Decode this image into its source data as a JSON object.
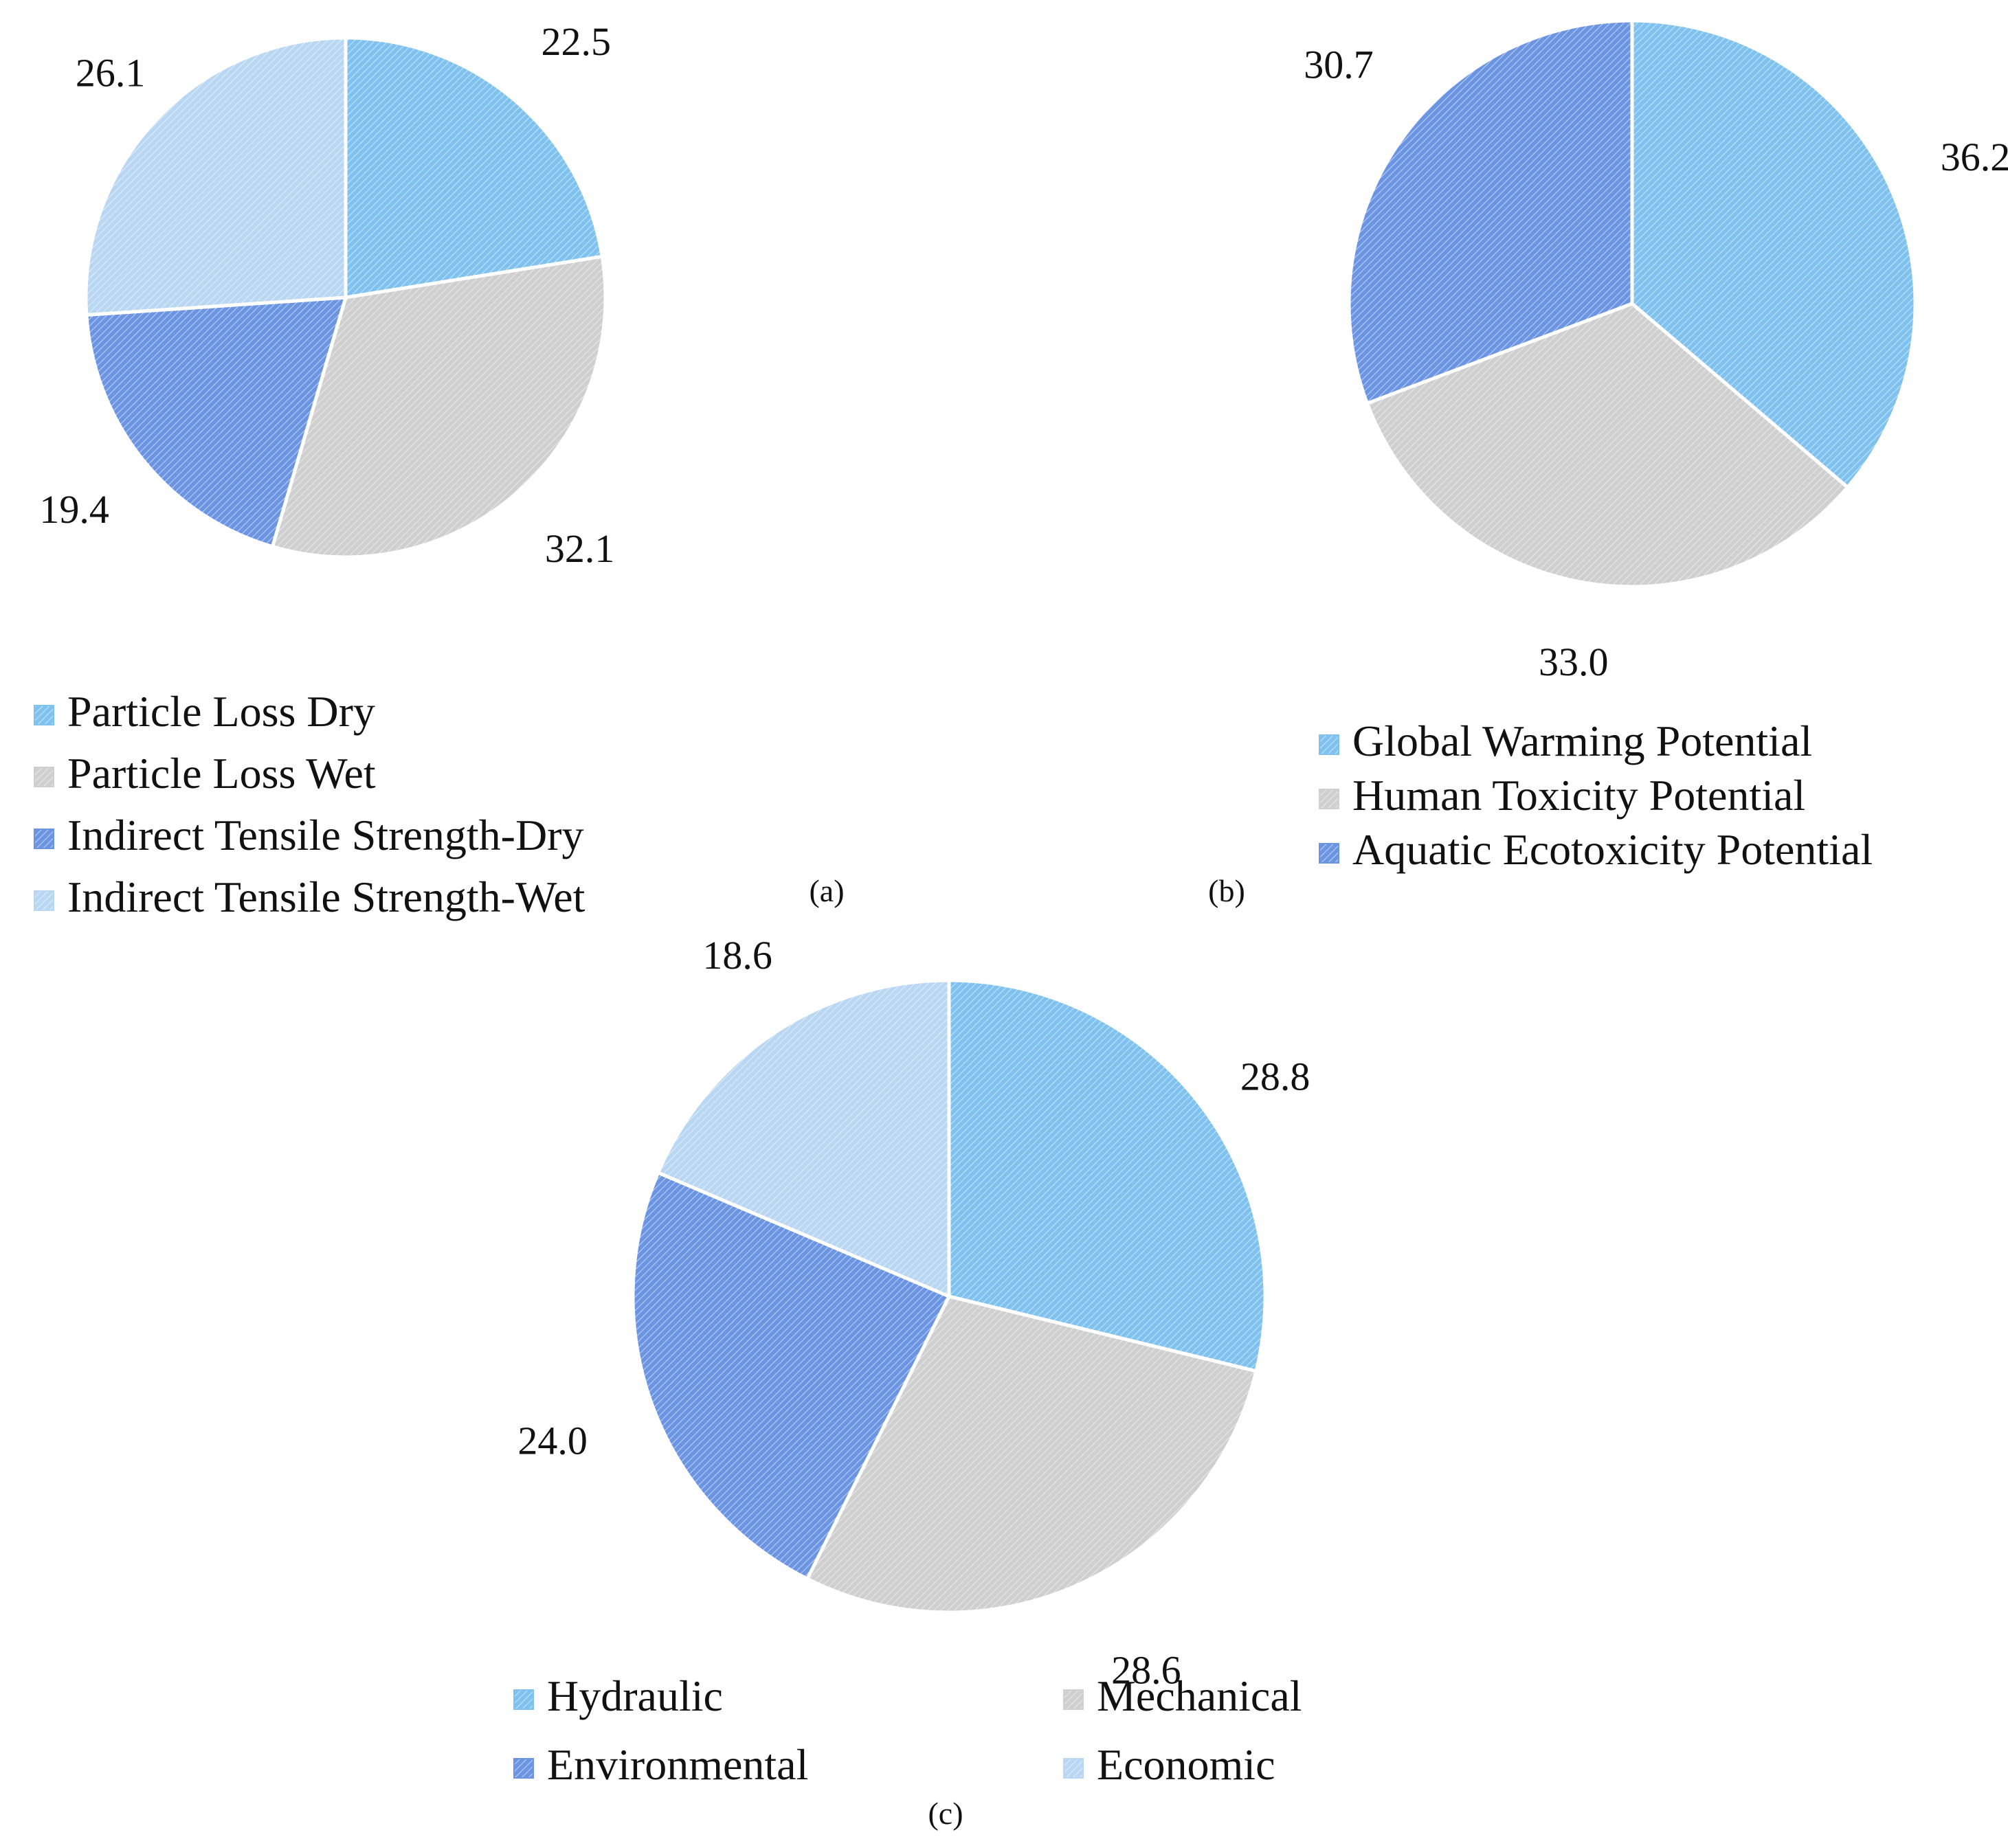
{
  "colors": {
    "blue_light": "#7fc2ef",
    "gray": "#cfcfcf",
    "blue_mid": "#6b95e2",
    "blue_pale": "#b9d7f2"
  },
  "chart_data": [
    {
      "type": "pie",
      "caption": "(a)",
      "labels": [
        "Particle Loss Dry",
        "Particle Loss Wet",
        "Indirect Tensile Strength-Dry",
        "Indirect Tensile Strength-Wet"
      ],
      "values": [
        22.5,
        32.1,
        19.4,
        26.1
      ],
      "value_labels": [
        "22.5",
        "32.1",
        "19.4",
        "26.1"
      ],
      "colors": [
        "#7fc2ef",
        "#cfcfcf",
        "#6b95e2",
        "#b9d7f2"
      ],
      "legend_position": "bottom-left"
    },
    {
      "type": "pie",
      "caption": "(b)",
      "labels": [
        "Global Warming Potential",
        "Human Toxicity Potential",
        "Aquatic Ecotoxicity Potential"
      ],
      "values": [
        36.2,
        33.0,
        30.7
      ],
      "value_labels": [
        "36.2",
        "33.0",
        "30.7"
      ],
      "colors": [
        "#7fc2ef",
        "#cfcfcf",
        "#6b95e2"
      ],
      "legend_position": "bottom-right"
    },
    {
      "type": "pie",
      "caption": "(c)",
      "labels": [
        "Hydraulic",
        "Mechanical",
        "Environmental",
        "Economic"
      ],
      "values": [
        28.8,
        28.6,
        24.0,
        18.6
      ],
      "value_labels": [
        "28.8",
        "28.6",
        "24.0",
        "18.6"
      ],
      "colors": [
        "#7fc2ef",
        "#cfcfcf",
        "#6b95e2",
        "#b9d7f2"
      ],
      "legend_position": "bottom"
    }
  ]
}
